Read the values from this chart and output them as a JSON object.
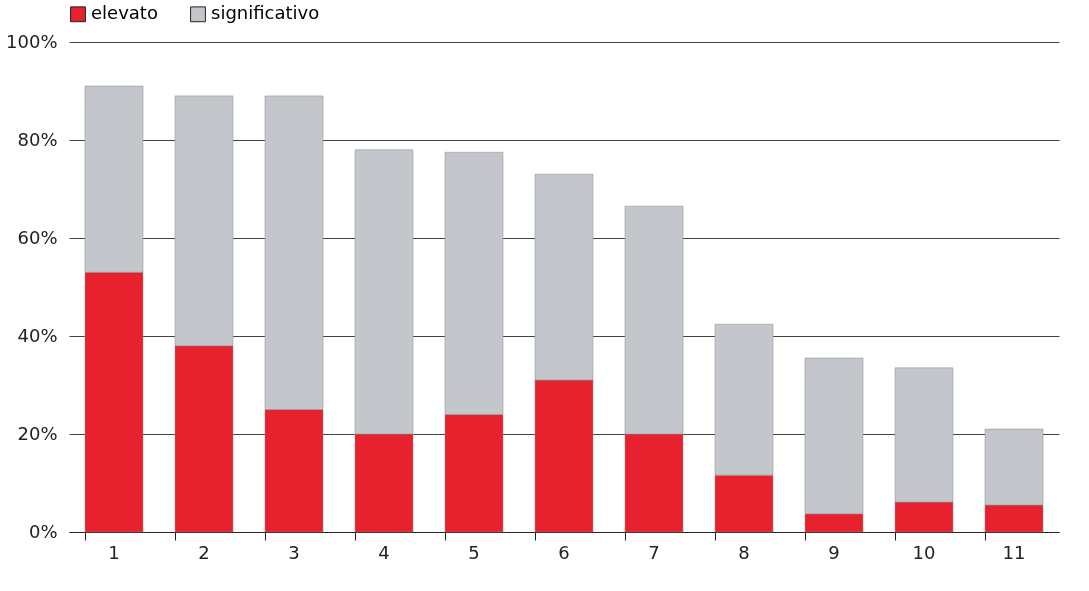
{
  "chart_data": {
    "type": "bar",
    "stacked": true,
    "categories": [
      "1",
      "2",
      "3",
      "4",
      "5",
      "6",
      "7",
      "8",
      "9",
      "10",
      "11"
    ],
    "series": [
      {
        "name": "elevato",
        "color": "#e8212e",
        "values": [
          53,
          38,
          25,
          20,
          24,
          31,
          20,
          11.6,
          3.7,
          6.1,
          5.5
        ]
      },
      {
        "name": "significativo",
        "color": "#c3c7cb",
        "values": [
          38,
          51,
          64,
          58,
          53.5,
          42,
          46.5,
          30.8,
          31.8,
          27.4,
          15.5
        ]
      }
    ],
    "ylim": [
      0,
      100
    ],
    "yticks": [
      {
        "value": 0,
        "label": "0%"
      },
      {
        "value": 20,
        "label": "20%"
      },
      {
        "value": 40,
        "label": "40%"
      },
      {
        "value": 60,
        "label": "60%"
      },
      {
        "value": 80,
        "label": "80%"
      },
      {
        "value": 100,
        "label": "100%"
      }
    ],
    "grid": "y",
    "legend": "top"
  }
}
